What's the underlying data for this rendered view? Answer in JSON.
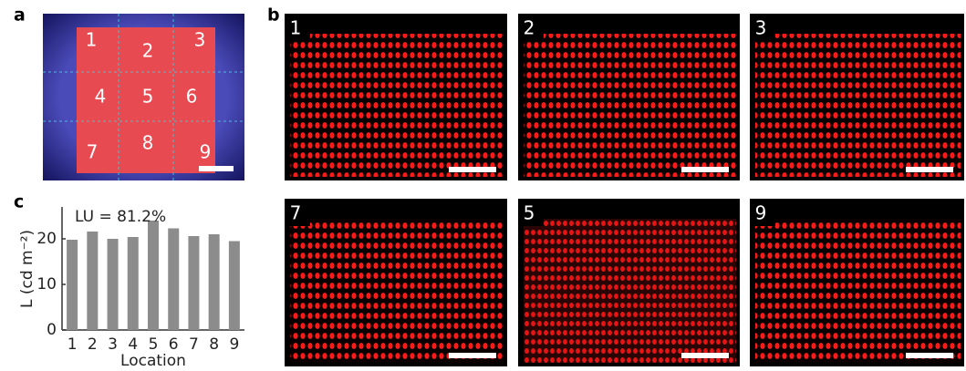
{
  "panel_labels": [
    "a",
    "b",
    "c"
  ],
  "panel_a_labels": [
    "1",
    "2",
    "3",
    "4",
    "5",
    "6",
    "7",
    "8",
    "9"
  ],
  "panel_b_labels": [
    "1",
    "2",
    "3",
    "7",
    "5",
    "9"
  ],
  "chart_data": {
    "type": "bar",
    "annotation": "LU = 81.2%",
    "x_label": "Location",
    "y_label": "L (cd m⁻²)",
    "categories": [
      "1",
      "2",
      "3",
      "4",
      "5",
      "6",
      "7",
      "8",
      "9"
    ],
    "values": [
      19.8,
      21.6,
      20.0,
      20.4,
      24.0,
      22.3,
      20.6,
      21.0,
      19.5
    ],
    "color": "#8c8c8c",
    "ylim": [
      0,
      27
    ],
    "yticks": [
      0,
      10,
      20
    ],
    "grid": false
  }
}
